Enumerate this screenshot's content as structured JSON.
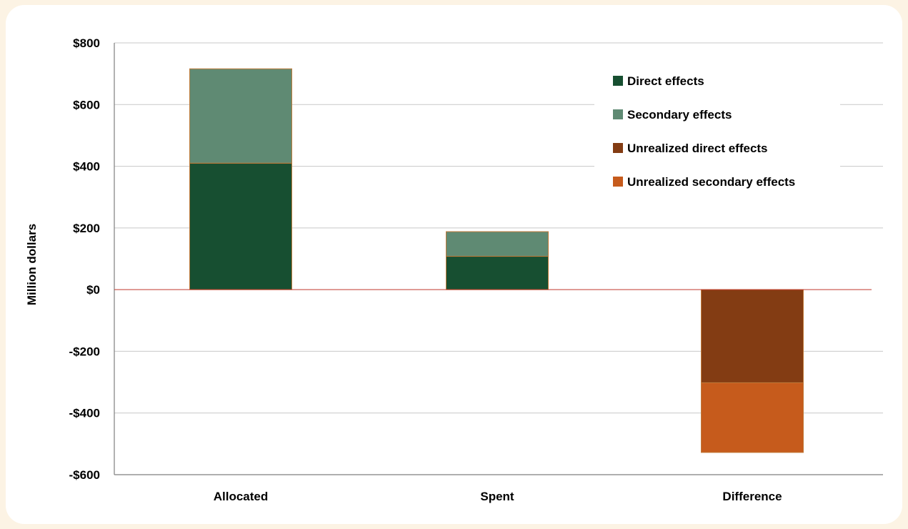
{
  "chart_data": {
    "type": "bar",
    "stacked": true,
    "title": "",
    "xlabel": "",
    "ylabel": "Million dollars",
    "ylim": [
      -600,
      800
    ],
    "yticks": [
      -600,
      -400,
      -200,
      0,
      200,
      400,
      600,
      800
    ],
    "ytick_labels": [
      "-$600",
      "-$400",
      "-$200",
      "$0",
      "$200",
      "$400",
      "$600",
      "$800"
    ],
    "categories": [
      "Allocated",
      "Spent",
      "Difference"
    ],
    "series": [
      {
        "name": "Direct effects",
        "color": "#174f31",
        "values": [
          410,
          108,
          0
        ]
      },
      {
        "name": "Secondary effects",
        "color": "#5f8a73",
        "values": [
          306,
          80,
          0
        ]
      },
      {
        "name": "Unrealized direct effects",
        "color": "#833c13",
        "values": [
          0,
          0,
          -302
        ]
      },
      {
        "name": "Unrealized secondary effects",
        "color": "#c65b1c",
        "values": [
          0,
          0,
          -226
        ]
      }
    ],
    "grid": true,
    "legend_position": "top-right",
    "colors": {
      "gridline": "#c8c8c8",
      "axis": "#7f7f7f",
      "zero_line": "#c0392b",
      "bar_edge": "#c07a3a"
    }
  }
}
